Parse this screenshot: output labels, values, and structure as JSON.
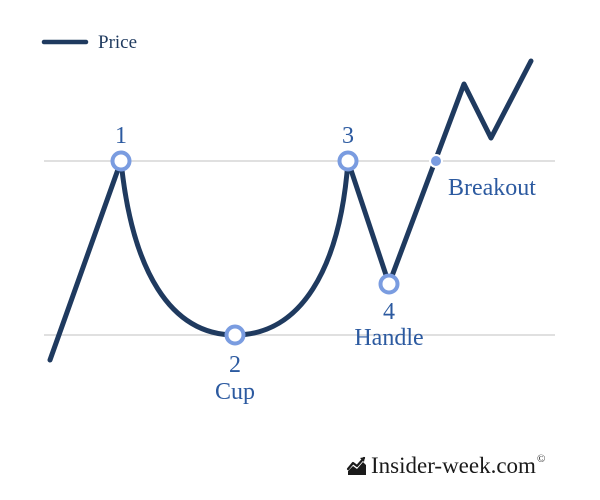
{
  "legend": {
    "label": "Price",
    "color": "#1f3a5f"
  },
  "points": [
    {
      "number": "1",
      "name": ""
    },
    {
      "number": "2",
      "name": "Cup"
    },
    {
      "number": "3",
      "name": ""
    },
    {
      "number": "4",
      "name": "Handle"
    }
  ],
  "breakout": {
    "label": "Breakout"
  },
  "colors": {
    "line": "#1f3a5f",
    "marker": "#7a9ce0",
    "label": "#2c5aa0",
    "gridline": "#d6d6d6"
  },
  "brand": {
    "text": "Insider-week.com",
    "symbol": "©",
    "icon": "chart-trend-icon"
  }
}
